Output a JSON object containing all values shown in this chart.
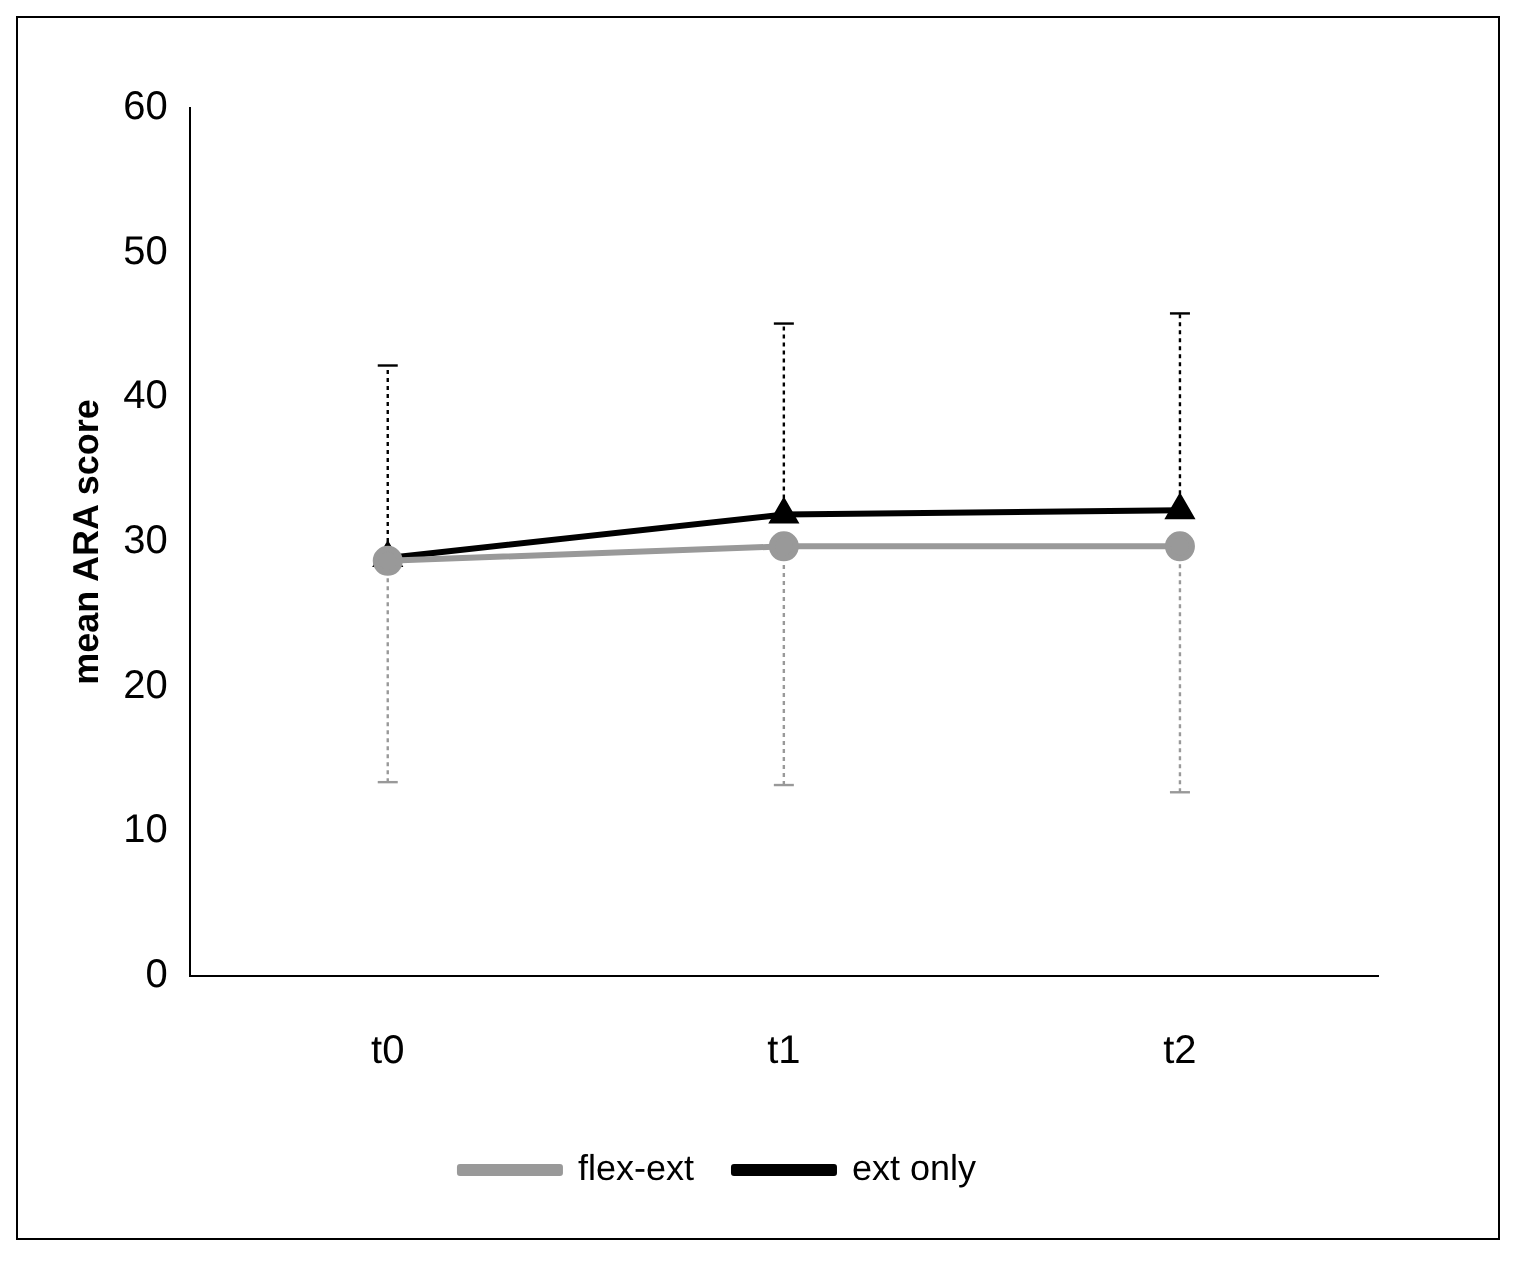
{
  "chart_data": {
    "type": "line",
    "ylabel": "mean ARA score",
    "categories": [
      "t0",
      "t1",
      "t2"
    ],
    "series": [
      {
        "name": "ext only",
        "color": "#000000",
        "marker": "triangle",
        "values": [
          28.9,
          31.9,
          32.2
        ],
        "errors": [
          [
            28.9,
            42.2
          ],
          [
            31.9,
            45.1
          ],
          [
            32.2,
            45.8
          ]
        ]
      },
      {
        "name": "flex-ext",
        "color": "#999999",
        "marker": "circle",
        "values": [
          28.7,
          29.7,
          29.7
        ],
        "errors": [
          [
            13.4,
            28.7
          ],
          [
            13.2,
            29.7
          ],
          [
            12.7,
            29.7
          ]
        ]
      }
    ],
    "ylim": [
      0,
      60
    ],
    "yticks": [
      0,
      10,
      20,
      30,
      40,
      50,
      60
    ],
    "grid": false,
    "legend": "bottom",
    "line_style": "solid"
  }
}
